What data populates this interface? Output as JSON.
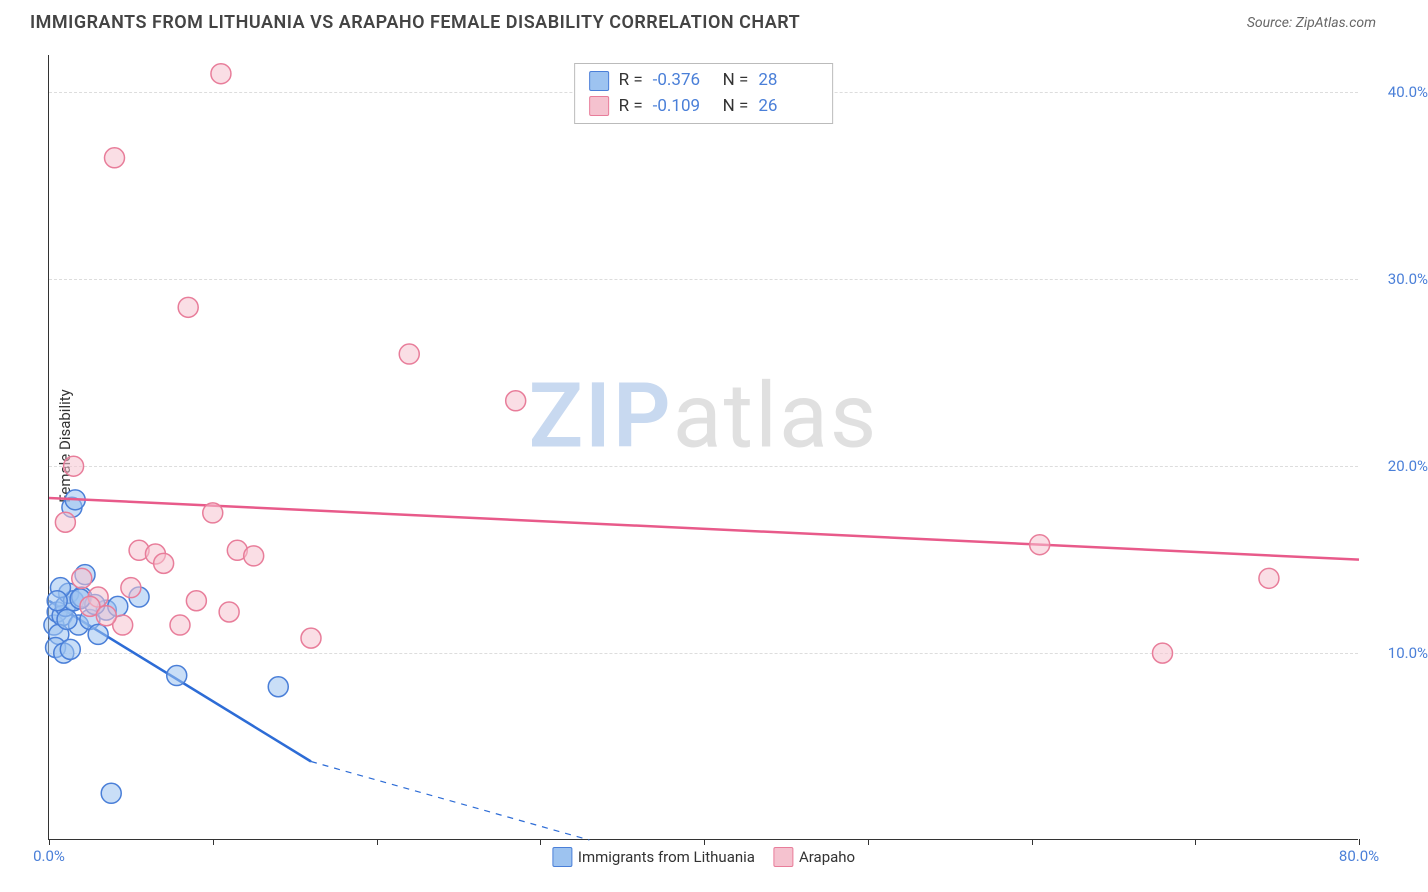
{
  "title": "IMMIGRANTS FROM LITHUANIA VS ARAPAHO FEMALE DISABILITY CORRELATION CHART",
  "source_label": "Source: ZipAtlas.com",
  "y_axis_label": "Female Disability",
  "watermark_a": "ZIP",
  "watermark_b": "atlas",
  "chart": {
    "type": "scatter",
    "xlim": [
      0,
      80
    ],
    "ylim": [
      0,
      42
    ],
    "x_ticks": [
      0,
      10,
      20,
      30,
      40,
      50,
      60,
      70,
      80
    ],
    "x_tick_labels": {
      "0": "0.0%",
      "80": "80.0%"
    },
    "y_ticks": [
      10,
      20,
      30,
      40
    ],
    "y_tick_labels": {
      "10": "10.0%",
      "20": "20.0%",
      "30": "30.0%",
      "40": "40.0%"
    },
    "grid_color": "#dddddd",
    "background_color": "#ffffff",
    "series": [
      {
        "name": "Immigrants from Lithuania",
        "fill": "#9dc3f0",
        "stroke": "#4a7fd8",
        "fill_opacity": 0.55,
        "stroke_width": 1.5,
        "marker_radius": 10,
        "regression": {
          "x1": 0,
          "y1": 12.8,
          "x2": 16,
          "y2": 4.2,
          "extrap_x2": 33,
          "extrap_y2": 0,
          "color": "#2d6cd6",
          "width": 2.5,
          "dash": "6,6"
        },
        "points": [
          {
            "x": 0.3,
            "y": 11.5
          },
          {
            "x": 0.5,
            "y": 12.2
          },
          {
            "x": 0.8,
            "y": 12.0
          },
          {
            "x": 0.6,
            "y": 11.0
          },
          {
            "x": 1.0,
            "y": 12.5
          },
          {
            "x": 1.2,
            "y": 13.2
          },
          {
            "x": 0.4,
            "y": 10.3
          },
          {
            "x": 1.5,
            "y": 12.8
          },
          {
            "x": 1.8,
            "y": 11.5
          },
          {
            "x": 2.0,
            "y": 13.0
          },
          {
            "x": 2.2,
            "y": 14.2
          },
          {
            "x": 2.5,
            "y": 11.8
          },
          {
            "x": 0.9,
            "y": 10.0
          },
          {
            "x": 1.3,
            "y": 10.2
          },
          {
            "x": 3.0,
            "y": 11.0
          },
          {
            "x": 3.5,
            "y": 12.3
          },
          {
            "x": 4.2,
            "y": 12.5
          },
          {
            "x": 1.4,
            "y": 17.8
          },
          {
            "x": 1.6,
            "y": 18.2
          },
          {
            "x": 0.7,
            "y": 13.5
          },
          {
            "x": 5.5,
            "y": 13.0
          },
          {
            "x": 7.8,
            "y": 8.8
          },
          {
            "x": 14.0,
            "y": 8.2
          },
          {
            "x": 3.8,
            "y": 2.5
          },
          {
            "x": 1.1,
            "y": 11.8
          },
          {
            "x": 0.5,
            "y": 12.8
          },
          {
            "x": 2.8,
            "y": 12.6
          },
          {
            "x": 1.9,
            "y": 12.9
          }
        ]
      },
      {
        "name": "Arapaho",
        "fill": "#f5c2cf",
        "stroke": "#e87d9a",
        "fill_opacity": 0.55,
        "stroke_width": 1.5,
        "marker_radius": 10,
        "regression": {
          "x1": 0,
          "y1": 18.3,
          "x2": 80,
          "y2": 15.0,
          "color": "#e85a8a",
          "width": 2.5
        },
        "points": [
          {
            "x": 1.0,
            "y": 17.0
          },
          {
            "x": 2.0,
            "y": 14.0
          },
          {
            "x": 4.0,
            "y": 36.5
          },
          {
            "x": 5.5,
            "y": 15.5
          },
          {
            "x": 6.5,
            "y": 15.3
          },
          {
            "x": 8.5,
            "y": 28.5
          },
          {
            "x": 10.0,
            "y": 17.5
          },
          {
            "x": 10.5,
            "y": 41.0
          },
          {
            "x": 11.5,
            "y": 15.5
          },
          {
            "x": 11.0,
            "y": 12.2
          },
          {
            "x": 16.0,
            "y": 10.8
          },
          {
            "x": 22.0,
            "y": 26.0
          },
          {
            "x": 28.5,
            "y": 23.5
          },
          {
            "x": 1.5,
            "y": 20.0
          },
          {
            "x": 3.0,
            "y": 13.0
          },
          {
            "x": 4.5,
            "y": 11.5
          },
          {
            "x": 60.5,
            "y": 15.8
          },
          {
            "x": 68.0,
            "y": 10.0
          },
          {
            "x": 74.5,
            "y": 14.0
          },
          {
            "x": 2.5,
            "y": 12.5
          },
          {
            "x": 7.0,
            "y": 14.8
          },
          {
            "x": 9.0,
            "y": 12.8
          },
          {
            "x": 12.5,
            "y": 15.2
          },
          {
            "x": 3.5,
            "y": 12.0
          },
          {
            "x": 5.0,
            "y": 13.5
          },
          {
            "x": 8.0,
            "y": 11.5
          }
        ]
      }
    ]
  },
  "stats_box": {
    "rows": [
      {
        "swatch_fill": "#9dc3f0",
        "swatch_stroke": "#4a7fd8",
        "r_label": "R =",
        "r_val": "-0.376",
        "n_label": "N =",
        "n_val": "28"
      },
      {
        "swatch_fill": "#f5c2cf",
        "swatch_stroke": "#e87d9a",
        "r_label": "R =",
        "r_val": "-0.109",
        "n_label": "N =",
        "n_val": "26"
      }
    ]
  },
  "bottom_legend": [
    {
      "swatch_fill": "#9dc3f0",
      "swatch_stroke": "#4a7fd8",
      "label": "Immigrants from Lithuania"
    },
    {
      "swatch_fill": "#f5c2cf",
      "swatch_stroke": "#e87d9a",
      "label": "Arapaho"
    }
  ]
}
